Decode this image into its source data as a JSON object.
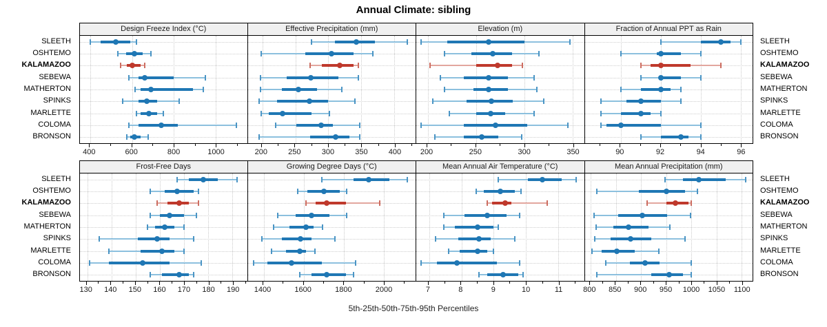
{
  "title": "Annual Climate: sibling",
  "caption": "5th-25th-50th-75th-95th Percentiles",
  "highlight_category": "KALAMAZOO",
  "colors": {
    "blue_main": "#1f77b4",
    "blue_light": "#8cc0de",
    "blue_cap": "#4a94c4",
    "red_main": "#bf392c",
    "red_light": "#e2a69e",
    "red_cap": "#cc6d61",
    "grid": "#cccccc",
    "panel_header_bg": "#f0f0f0",
    "border": "#000000"
  },
  "categories": [
    "SLEETH",
    "OSHTEMO",
    "KALAMAZOO",
    "SEBEWA",
    "MATHERTON",
    "SPINKS",
    "MARLETTE",
    "COLOMA",
    "BRONSON"
  ],
  "percentile_order": [
    "p5",
    "p25",
    "p50",
    "p75",
    "p95"
  ],
  "chart_data": [
    {
      "type": "interval",
      "title": "Design Freeze Index (°C)",
      "row": 0,
      "xlim": [
        350,
        1150
      ],
      "major_ticks": [
        400,
        600,
        800,
        1000
      ],
      "minor_step": 100,
      "values": [
        [
          400,
          450,
          520,
          590,
          620
        ],
        [
          530,
          570,
          610,
          650,
          690
        ],
        [
          545,
          575,
          600,
          640,
          660
        ],
        [
          585,
          630,
          660,
          800,
          950
        ],
        [
          615,
          640,
          690,
          890,
          940
        ],
        [
          555,
          630,
          670,
          720,
          825
        ],
        [
          620,
          640,
          680,
          720,
          750
        ],
        [
          585,
          630,
          740,
          820,
          1100
        ],
        [
          575,
          590,
          610,
          640,
          675
        ]
      ]
    },
    {
      "type": "interval",
      "title": "Effective Precipitation (mm)",
      "row": 0,
      "xlim": [
        178,
        432
      ],
      "major_ticks": [
        200,
        250,
        300,
        350,
        400
      ],
      "minor_step": 25,
      "values": [
        [
          275,
          310,
          342,
          370,
          420
        ],
        [
          198,
          265,
          305,
          338,
          367
        ],
        [
          272,
          290,
          317,
          338,
          345
        ],
        [
          197,
          237,
          273,
          315,
          345
        ],
        [
          197,
          230,
          255,
          283,
          320
        ],
        [
          195,
          222,
          271,
          300,
          340
        ],
        [
          198,
          210,
          231,
          275,
          302
        ],
        [
          220,
          252,
          289,
          307,
          347
        ],
        [
          195,
          272,
          311,
          332,
          348
        ]
      ]
    },
    {
      "type": "interval",
      "title": "Elevation (m)",
      "row": 0,
      "xlim": [
        188,
        362
      ],
      "major_ticks": [
        200,
        250,
        300,
        350
      ],
      "minor_step": 25,
      "values": [
        [
          193,
          220,
          263,
          300,
          347
        ],
        [
          217,
          245,
          267,
          287,
          315
        ],
        [
          202,
          250,
          272,
          287,
          298
        ],
        [
          213,
          237,
          263,
          283,
          310
        ],
        [
          217,
          247,
          263,
          283,
          313
        ],
        [
          205,
          240,
          266,
          288,
          320
        ],
        [
          222,
          250,
          265,
          280,
          310
        ],
        [
          193,
          237,
          270,
          303,
          345
        ],
        [
          207,
          237,
          256,
          273,
          297
        ]
      ]
    },
    {
      "type": "interval",
      "title": "Fraction of Annual PPT as Rain",
      "row": 0,
      "xlim": [
        88.2,
        96.6
      ],
      "major_ticks": [
        90,
        92,
        94,
        96
      ],
      "minor_step": 1,
      "values": [
        [
          92,
          94,
          95,
          95.5,
          96
        ],
        [
          90,
          91.8,
          92,
          93,
          94
        ],
        [
          91,
          91.5,
          92,
          93.5,
          95
        ],
        [
          91,
          91.9,
          92,
          93,
          94
        ],
        [
          90,
          91,
          92,
          92.5,
          93
        ],
        [
          89,
          90.3,
          91,
          92,
          93
        ],
        [
          89,
          90,
          91,
          91.5,
          92
        ],
        [
          89,
          89.3,
          90,
          92,
          94
        ],
        [
          91,
          92,
          93,
          93.4,
          94
        ]
      ]
    },
    {
      "type": "interval",
      "title": "Frost-Free Days",
      "row": 1,
      "xlim": [
        127,
        196
      ],
      "major_ticks": [
        130,
        140,
        150,
        160,
        170,
        180,
        190
      ],
      "minor_step": 5,
      "values": [
        [
          167,
          172,
          178,
          184,
          192
        ],
        [
          156,
          162,
          167,
          174,
          176
        ],
        [
          159,
          163,
          168,
          172,
          176
        ],
        [
          156,
          160,
          164,
          170,
          175
        ],
        [
          155,
          158,
          162,
          166,
          170
        ],
        [
          135,
          151,
          159,
          164,
          174
        ],
        [
          139,
          152,
          161,
          166,
          170
        ],
        [
          131,
          139,
          153,
          164,
          177
        ],
        [
          156,
          161,
          168,
          172,
          174
        ]
      ]
    },
    {
      "type": "interval",
      "title": "Growing Degree Days (°C)",
      "row": 1,
      "xlim": [
        1320,
        2160
      ],
      "major_ticks": [
        1400,
        1600,
        1800,
        2000
      ],
      "minor_step": 100,
      "values": [
        [
          1690,
          1850,
          1925,
          2030,
          2120
        ],
        [
          1570,
          1620,
          1700,
          1780,
          1815
        ],
        [
          1610,
          1660,
          1715,
          1810,
          1980
        ],
        [
          1470,
          1560,
          1640,
          1730,
          1815
        ],
        [
          1450,
          1530,
          1610,
          1650,
          1695
        ],
        [
          1390,
          1490,
          1585,
          1640,
          1755
        ],
        [
          1440,
          1510,
          1580,
          1610,
          1655
        ],
        [
          1350,
          1420,
          1540,
          1690,
          1860
        ],
        [
          1580,
          1640,
          1715,
          1810,
          1850
        ]
      ]
    },
    {
      "type": "interval",
      "title": "Mean Annual Air Temperature (°C)",
      "row": 1,
      "xlim": [
        6.6,
        11.8
      ],
      "major_ticks": [
        7,
        8,
        9,
        10,
        11
      ],
      "minor_step": 0.5,
      "values": [
        [
          9.15,
          10.05,
          10.5,
          11.1,
          11.55
        ],
        [
          8.45,
          8.7,
          9.2,
          9.65,
          9.85
        ],
        [
          8.8,
          8.95,
          9.35,
          9.55,
          10.65
        ],
        [
          7.45,
          8.1,
          8.8,
          9.4,
          9.8
        ],
        [
          7.45,
          7.8,
          8.5,
          9.0,
          9.15
        ],
        [
          7.2,
          7.9,
          8.55,
          8.9,
          9.65
        ],
        [
          7.6,
          7.95,
          8.5,
          8.8,
          9.0
        ],
        [
          6.75,
          7.25,
          7.85,
          9.1,
          9.8
        ],
        [
          8.55,
          8.8,
          9.3,
          9.75,
          9.9
        ]
      ]
    },
    {
      "type": "interval",
      "title": "Mean Annual Precipitation (mm)",
      "row": 1,
      "xlim": [
        788,
        1122
      ],
      "major_ticks": [
        800,
        850,
        900,
        950,
        1000,
        1050,
        1100
      ],
      "minor_step": 25,
      "values": [
        [
          948,
          983,
          1015,
          1068,
          1108
        ],
        [
          812,
          895,
          951,
          988,
          1012
        ],
        [
          912,
          950,
          969,
          995,
          1000
        ],
        [
          807,
          855,
          902,
          952,
          998
        ],
        [
          810,
          845,
          875,
          915,
          957
        ],
        [
          808,
          840,
          879,
          920,
          987
        ],
        [
          802,
          822,
          852,
          888,
          935
        ],
        [
          830,
          878,
          908,
          937,
          1000
        ],
        [
          812,
          920,
          956,
          983,
          1000
        ]
      ]
    }
  ]
}
